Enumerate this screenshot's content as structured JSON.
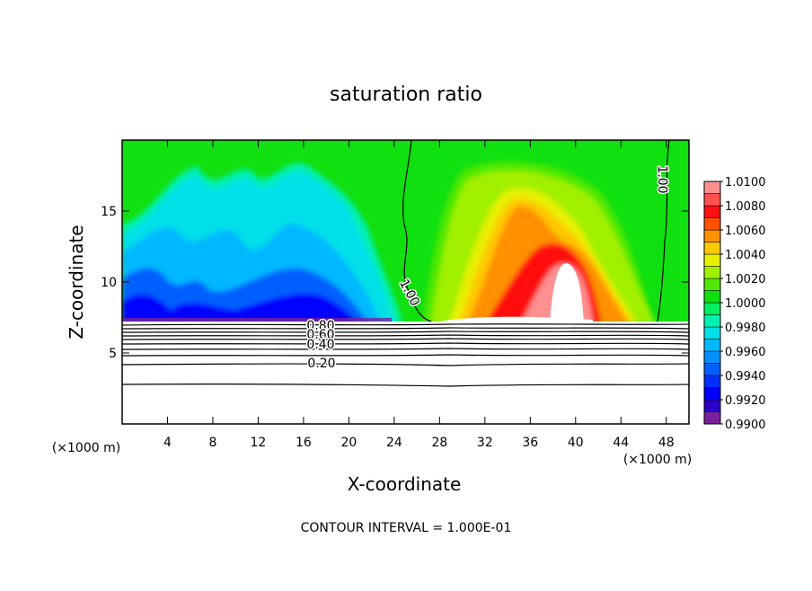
{
  "chart_data": {
    "type": "contour",
    "title": "saturation ratio",
    "x_label": "X-coordinate",
    "y_label": "Z-coordinate",
    "x_units": "(×1000 m)",
    "y_units": "(×1000 m)",
    "xlim": [
      0,
      50
    ],
    "xticks": [
      4,
      8,
      12,
      16,
      20,
      24,
      28,
      32,
      36,
      40,
      44,
      48
    ],
    "ylim": [
      0,
      20
    ],
    "yticks": [
      5,
      10,
      15
    ],
    "colorbar": {
      "lim": [
        0.99,
        1.01
      ],
      "ticks": [
        {
          "value": 0.99,
          "label": "0.9900"
        },
        {
          "value": 0.992,
          "label": "0.9920"
        },
        {
          "value": 0.994,
          "label": "0.9940"
        },
        {
          "value": 0.996,
          "label": "0.9960"
        },
        {
          "value": 0.998,
          "label": "0.9980"
        },
        {
          "value": 1.0,
          "label": "1.0000"
        },
        {
          "value": 1.002,
          "label": "1.0020"
        },
        {
          "value": 1.004,
          "label": "1.0040"
        },
        {
          "value": 1.006,
          "label": "1.0060"
        },
        {
          "value": 1.008,
          "label": "1.0080"
        },
        {
          "value": 1.01,
          "label": "1.0100"
        }
      ],
      "colors": [
        "#7a1fa0",
        "#2a00c8",
        "#0000ff",
        "#0030ff",
        "#0060ff",
        "#0090ff",
        "#00b8ff",
        "#00e0e8",
        "#00f0b0",
        "#00ee60",
        "#10e010",
        "#50e800",
        "#a0f000",
        "#e8f000",
        "#ffc800",
        "#ff9000",
        "#ff5000",
        "#ff1010",
        "#ff5050",
        "#ff9090"
      ]
    },
    "contour_labels": [
      {
        "value": 1.0,
        "label": "1.00"
      },
      {
        "value": 1.0,
        "label": "1.00"
      },
      {
        "value": 0.8,
        "label": "0.80"
      },
      {
        "value": 0.6,
        "label": "0.60"
      },
      {
        "value": 0.4,
        "label": "0.40"
      },
      {
        "value": 0.2,
        "label": "0.20"
      }
    ],
    "footnote": "CONTOUR INTERVAL = 1.000E-01"
  }
}
